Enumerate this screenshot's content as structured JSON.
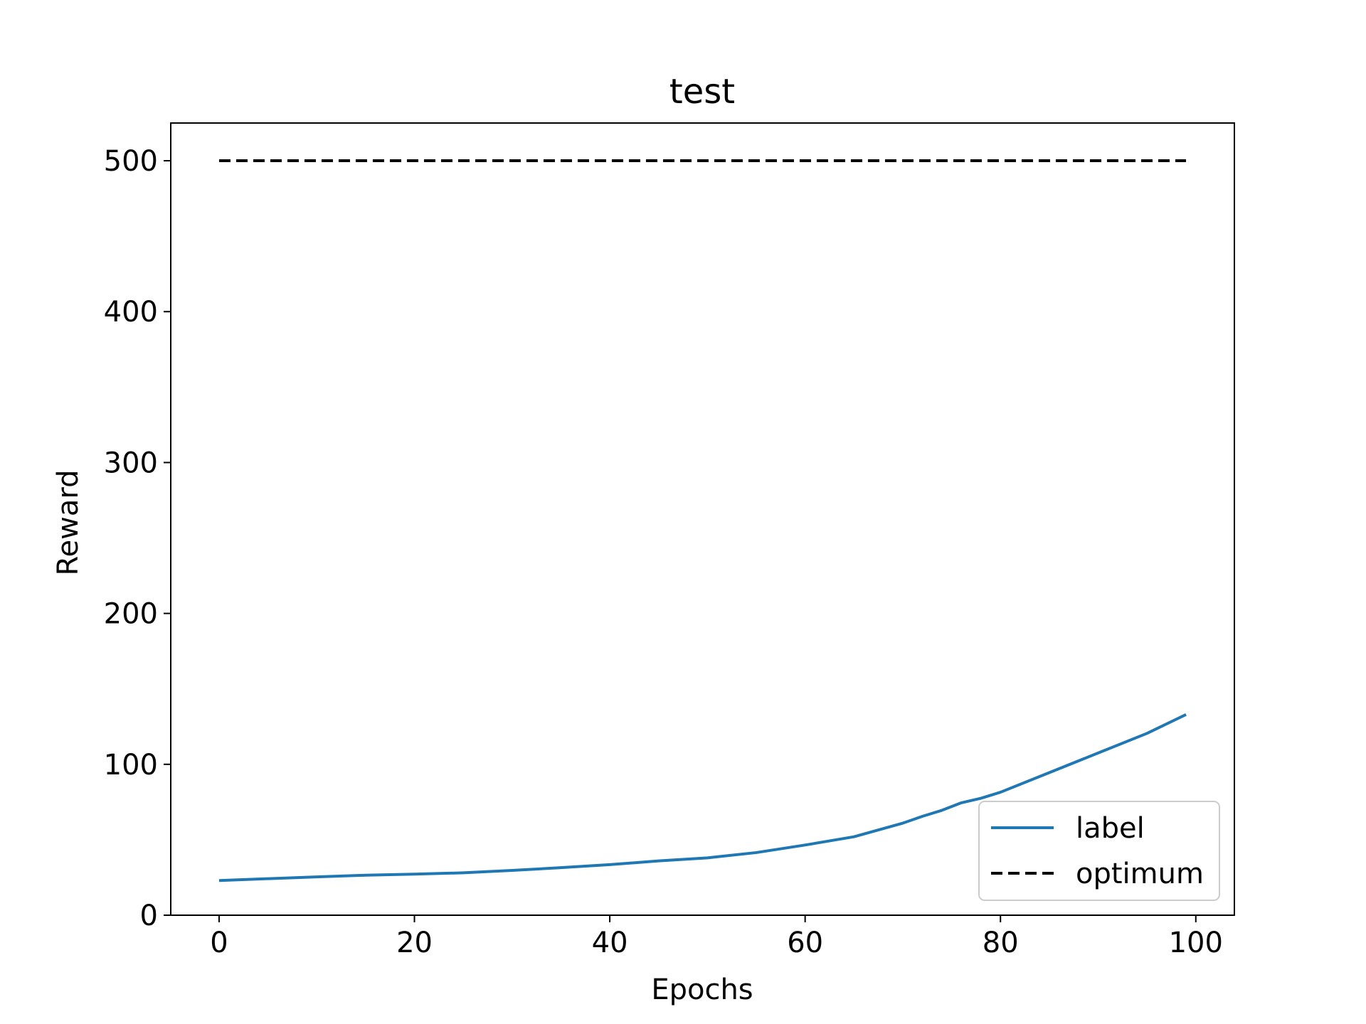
{
  "chart_data": {
    "type": "line",
    "title": "test",
    "xlabel": "Epochs",
    "ylabel": "Reward",
    "xlim": [
      -4.95,
      103.95
    ],
    "ylim": [
      0,
      525
    ],
    "xticks": [
      0,
      20,
      40,
      60,
      80,
      100
    ],
    "yticks": [
      0,
      100,
      200,
      300,
      400,
      500
    ],
    "grid": false,
    "legend_placement": "lower-right",
    "series": [
      {
        "name": "label",
        "color": "#1f77b4",
        "style": "solid",
        "x": [
          0,
          5,
          10,
          15,
          20,
          25,
          30,
          35,
          40,
          45,
          50,
          55,
          60,
          65,
          70,
          72,
          74,
          76,
          78,
          80,
          85,
          90,
          95,
          99
        ],
        "values": [
          23,
          24.2,
          25.4,
          26.5,
          27.2,
          28.1,
          29.7,
          31.5,
          33.5,
          36.0,
          38.0,
          41.5,
          46.5,
          52.0,
          61.0,
          65.5,
          69.5,
          74.5,
          77.5,
          81.5,
          94.5,
          107.5,
          120.5,
          133
        ]
      },
      {
        "name": "optimum",
        "color": "#000000",
        "style": "dashed",
        "x": [
          0,
          99
        ],
        "values": [
          500,
          500
        ]
      }
    ]
  }
}
